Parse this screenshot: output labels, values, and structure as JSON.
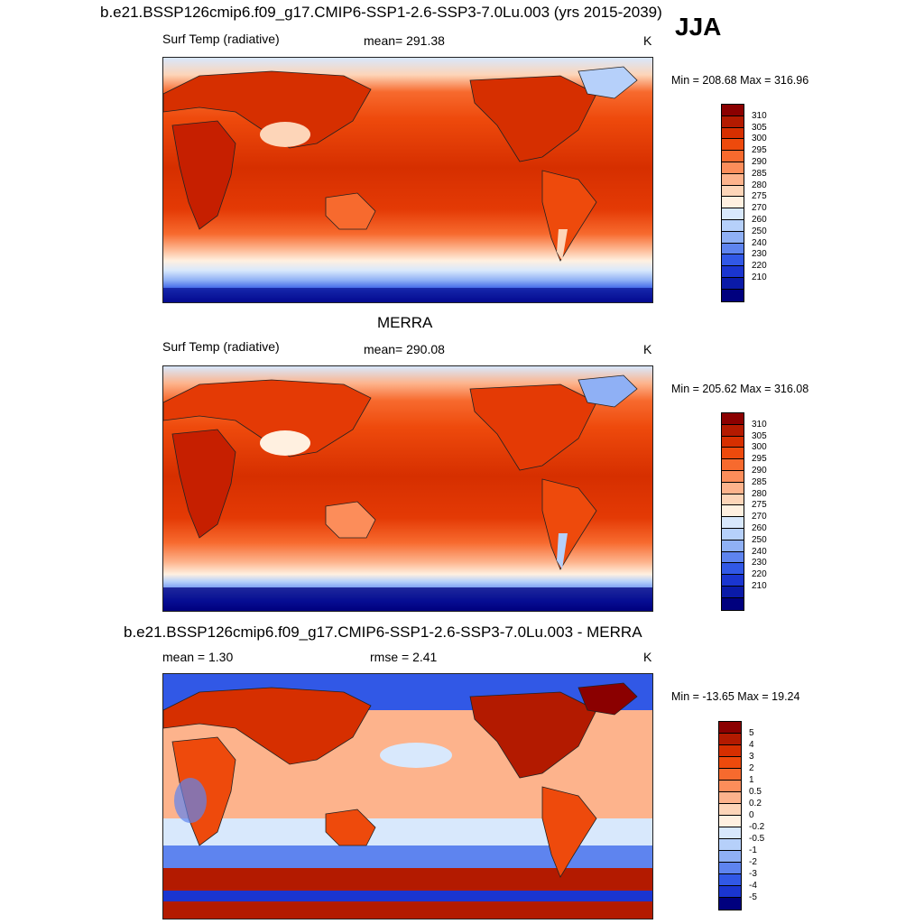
{
  "season": "JJA",
  "panel1": {
    "title": "b.e21.BSSP126cmip6.f09_g17.CMIP6-SSP1-2.6-SSP3-7.0Lu.003 (yrs 2015-2039)",
    "variable": "Surf Temp (radiative)",
    "mean": "mean= 291.38",
    "units": "K",
    "minmax": "Min = 208.68 Max = 316.96"
  },
  "panel2": {
    "title": "MERRA",
    "variable": "Surf Temp (radiative)",
    "mean": "mean= 290.08",
    "units": "K",
    "minmax": "Min = 205.62 Max = 316.08"
  },
  "panel3": {
    "title": "b.e21.BSSP126cmip6.f09_g17.CMIP6-SSP1-2.6-SSP3-7.0Lu.003 - MERRA",
    "mean": "mean =   1.30",
    "rmse": "rmse =   2.41",
    "units": "K",
    "minmax": "Min = -13.65 Max =  19.24"
  },
  "colorbar_abs": {
    "labels": [
      "310",
      "305",
      "300",
      "295",
      "290",
      "285",
      "280",
      "275",
      "270",
      "260",
      "250",
      "240",
      "230",
      "220",
      "210"
    ],
    "colors": [
      "#8b0000",
      "#b31a00",
      "#d62f00",
      "#ee4a0c",
      "#f76a2e",
      "#fc8d5a",
      "#fdb38c",
      "#fdd5b8",
      "#fff0e0",
      "#d8e8fc",
      "#b6d0fa",
      "#8fb0f5",
      "#5e84ef",
      "#3158e6",
      "#1a35d0",
      "#0a1aa8",
      "#00007e"
    ]
  },
  "colorbar_diff": {
    "labels": [
      "5",
      "4",
      "3",
      "2",
      "1",
      "0.5",
      "0.2",
      "0",
      "-0.2",
      "-0.5",
      "-1",
      "-2",
      "-3",
      "-4",
      "-5"
    ],
    "colors": [
      "#8b0000",
      "#b31a00",
      "#d62f00",
      "#ee4a0c",
      "#f76a2e",
      "#fc8d5a",
      "#fdb38c",
      "#fdd5b8",
      "#fff0e0",
      "#d8e8fc",
      "#b6d0fa",
      "#8fb0f5",
      "#5e84ef",
      "#3158e6",
      "#1a35d0",
      "#00007e"
    ]
  }
}
